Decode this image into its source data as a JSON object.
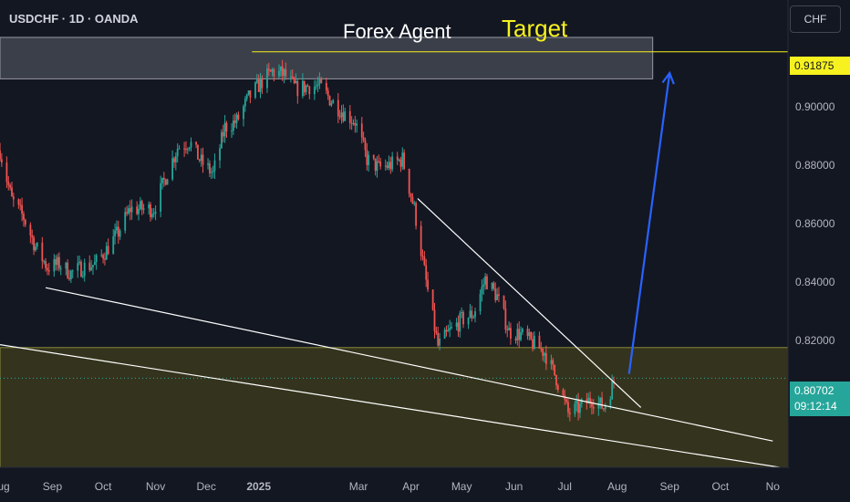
{
  "header": {
    "symbol_title": "USDCHF · 1D · OANDA",
    "currency": "CHF"
  },
  "annotations": {
    "forex_agent_label": "Forex Agent",
    "target_label": "Target"
  },
  "price_tags": {
    "target": "0.91875",
    "last_price": "0.80702",
    "countdown": "09:12:14"
  },
  "colors": {
    "background": "#131722",
    "up_candle": "#26a69a",
    "down_candle": "#ef5350",
    "target_line": "#f7f11f",
    "arrow": "#2962ff",
    "trendline": "#ffffff",
    "support_zone": "#3a3a1e",
    "resistance_zone": "#4a4d57"
  },
  "chart_data": {
    "type": "candlestick",
    "symbol": "USDCHF",
    "timeframe": "1D",
    "source": "OANDA",
    "x_ticks": [
      "Aug",
      "Sep",
      "Oct",
      "Nov",
      "Dec",
      "2025",
      "Mar",
      "Apr",
      "May",
      "Jun",
      "Jul",
      "Aug",
      "Sep",
      "Oct",
      "No"
    ],
    "y_ticks": [
      "0.82000",
      "0.84000",
      "0.86000",
      "0.88000",
      "0.90000"
    ],
    "ylim": [
      0.7765,
      0.9365
    ],
    "x_range": [
      "2024-08-01",
      "2025-11-10"
    ],
    "series_close_approx": [
      [
        "2024-08-01",
        0.885
      ],
      [
        "2024-08-08",
        0.868
      ],
      [
        "2024-08-15",
        0.862
      ],
      [
        "2024-08-22",
        0.852
      ],
      [
        "2024-08-29",
        0.845
      ],
      [
        "2024-09-05",
        0.846
      ],
      [
        "2024-09-12",
        0.843
      ],
      [
        "2024-09-19",
        0.845
      ],
      [
        "2024-09-26",
        0.846
      ],
      [
        "2024-10-03",
        0.851
      ],
      [
        "2024-10-10",
        0.857
      ],
      [
        "2024-10-17",
        0.865
      ],
      [
        "2024-10-24",
        0.865
      ],
      [
        "2024-10-31",
        0.865
      ],
      [
        "2024-11-07",
        0.876
      ],
      [
        "2024-11-14",
        0.886
      ],
      [
        "2024-11-21",
        0.888
      ],
      [
        "2024-11-28",
        0.881
      ],
      [
        "2024-12-05",
        0.877
      ],
      [
        "2024-12-12",
        0.893
      ],
      [
        "2024-12-19",
        0.895
      ],
      [
        "2024-12-26",
        0.903
      ],
      [
        "2025-01-02",
        0.908
      ],
      [
        "2025-01-09",
        0.912
      ],
      [
        "2025-01-16",
        0.911
      ],
      [
        "2025-01-23",
        0.906
      ],
      [
        "2025-01-30",
        0.907
      ],
      [
        "2025-02-06",
        0.907
      ],
      [
        "2025-02-13",
        0.902
      ],
      [
        "2025-02-20",
        0.898
      ],
      [
        "2025-02-27",
        0.895
      ],
      [
        "2025-03-06",
        0.882
      ],
      [
        "2025-03-13",
        0.879
      ],
      [
        "2025-03-20",
        0.88
      ],
      [
        "2025-03-27",
        0.882
      ],
      [
        "2025-04-03",
        0.865
      ],
      [
        "2025-04-10",
        0.84
      ],
      [
        "2025-04-17",
        0.818
      ],
      [
        "2025-04-24",
        0.823
      ],
      [
        "2025-05-01",
        0.827
      ],
      [
        "2025-05-08",
        0.829
      ],
      [
        "2025-05-15",
        0.841
      ],
      [
        "2025-05-22",
        0.835
      ],
      [
        "2025-05-29",
        0.823
      ],
      [
        "2025-06-05",
        0.822
      ],
      [
        "2025-06-12",
        0.819
      ],
      [
        "2025-06-19",
        0.816
      ],
      [
        "2025-06-26",
        0.807
      ],
      [
        "2025-07-03",
        0.795
      ],
      [
        "2025-07-10",
        0.797
      ],
      [
        "2025-07-17",
        0.8
      ],
      [
        "2025-07-24",
        0.797
      ],
      [
        "2025-07-31",
        0.807
      ]
    ],
    "levels": {
      "target": 0.91875,
      "last_price": 0.80702,
      "resistance_zone": [
        0.9095,
        0.9237
      ],
      "support_zone": [
        0.7765,
        0.8175
      ]
    },
    "projection_arrow": {
      "from": [
        "2025-08-08",
        0.8085
      ],
      "to": [
        "2025-09-01",
        0.9115
      ]
    }
  }
}
